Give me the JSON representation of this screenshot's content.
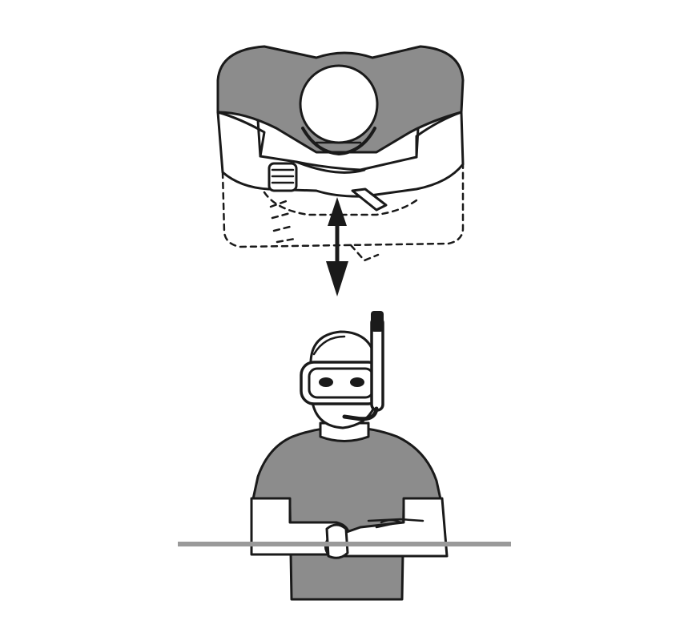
{
  "figure": {
    "subject": "snorkeler-arm-signal",
    "colors": {
      "background": "#ffffff",
      "fill_gray": "#8c8c8c",
      "line": "#1a1a1a",
      "water_line": "#9a9a9a"
    },
    "icons": {
      "top_view": "overhead-diver-icon",
      "arrow": "double-arrow-icon",
      "front_view": "snorkeler-front-icon",
      "snorkel": "snorkel-icon",
      "mask": "dive-mask-icon"
    }
  }
}
